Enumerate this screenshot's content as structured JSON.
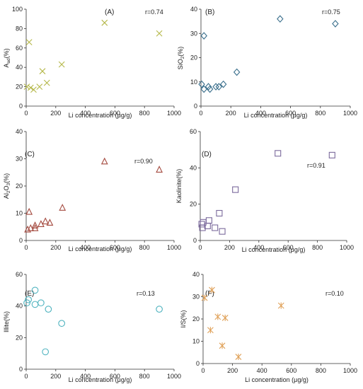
{
  "chart_data": [
    {
      "type": "scatter",
      "panel_label": "(A)",
      "r_label": "r=0.74",
      "ylabel_main": "A",
      "ylabel_sub": "ad",
      "ylabel_unit": "(%)",
      "xlabel": "Li concentration (μg/g)",
      "xlim": [
        0,
        1000
      ],
      "ylim": [
        0,
        100
      ],
      "xticks": [
        0,
        200,
        400,
        600,
        800,
        1000
      ],
      "yticks": [
        0,
        20,
        40,
        60,
        80,
        100
      ],
      "marker": "x",
      "color": "#b5b84a",
      "points": [
        [
          5,
          20
        ],
        [
          20,
          66
        ],
        [
          30,
          19
        ],
        [
          50,
          17
        ],
        [
          90,
          20
        ],
        [
          110,
          36
        ],
        [
          140,
          24
        ],
        [
          240,
          43
        ],
        [
          530,
          86
        ],
        [
          900,
          75
        ]
      ]
    },
    {
      "type": "scatter",
      "panel_label": "(B)",
      "r_label": "r=0.75",
      "ylabel_main": "SiO",
      "ylabel_sub": "2",
      "ylabel_unit": "(%)",
      "xlabel": "Li concentration (μg/g)",
      "xlim": [
        0,
        1000
      ],
      "ylim": [
        0,
        40
      ],
      "xticks": [
        0,
        200,
        400,
        600,
        800,
        1000
      ],
      "yticks": [
        0,
        10,
        20,
        30,
        40
      ],
      "marker": "diamond",
      "color": "#3a6f8c",
      "points": [
        [
          5,
          9
        ],
        [
          20,
          7
        ],
        [
          20,
          29
        ],
        [
          50,
          8
        ],
        [
          60,
          7
        ],
        [
          100,
          8
        ],
        [
          120,
          8
        ],
        [
          150,
          9
        ],
        [
          240,
          14
        ],
        [
          530,
          36
        ],
        [
          900,
          34
        ]
      ]
    },
    {
      "type": "scatter",
      "panel_label": "(C)",
      "r_label": "r=0.90",
      "ylabel_main": "Al",
      "ylabel_sub": "2",
      "ylabel_main2": "O",
      "ylabel_sub2": "3",
      "ylabel_unit": "(%)",
      "xlabel": "Li concentration (μg/g)",
      "xlim": [
        0,
        1000
      ],
      "ylim": [
        0,
        40
      ],
      "xticks": [
        0,
        200,
        400,
        600,
        800,
        1000
      ],
      "yticks": [
        0,
        10,
        20,
        30,
        40
      ],
      "marker": "triangle",
      "color": "#a44a3f",
      "points": [
        [
          10,
          4
        ],
        [
          20,
          10.5
        ],
        [
          30,
          4.5
        ],
        [
          60,
          5.5
        ],
        [
          60,
          4.5
        ],
        [
          100,
          6
        ],
        [
          130,
          7
        ],
        [
          160,
          6.5
        ],
        [
          245,
          12
        ],
        [
          530,
          29
        ],
        [
          900,
          26
        ]
      ]
    },
    {
      "type": "scatter",
      "panel_label": "(D)",
      "r_label": "r=0.91",
      "ylabel_main": "Kaolinite",
      "ylabel_unit": "(%)",
      "xlabel": "Li concentration (μg/g)",
      "xlim": [
        0,
        1000
      ],
      "ylim": [
        0,
        60
      ],
      "xticks": [
        0,
        200,
        400,
        600,
        800,
        1000
      ],
      "yticks": [
        0,
        20,
        40,
        60
      ],
      "marker": "square",
      "color": "#7b6a9c",
      "points": [
        [
          10,
          9
        ],
        [
          15,
          7
        ],
        [
          20,
          10
        ],
        [
          50,
          8
        ],
        [
          60,
          11
        ],
        [
          100,
          7
        ],
        [
          130,
          15
        ],
        [
          150,
          5
        ],
        [
          240,
          28
        ],
        [
          530,
          48
        ],
        [
          900,
          47
        ]
      ]
    },
    {
      "type": "scatter",
      "panel_label": "(E)",
      "r_label": "r=0.13",
      "ylabel_main": "Illite",
      "ylabel_unit": "(%)",
      "xlabel": "Li concentration (μg/g)",
      "xlim": [
        0,
        1000
      ],
      "ylim": [
        0,
        60
      ],
      "xticks": [
        0,
        200,
        400,
        600,
        800,
        1000
      ],
      "yticks": [
        0,
        20,
        40,
        60
      ],
      "marker": "circle",
      "color": "#4fb3bf",
      "points": [
        [
          5,
          42
        ],
        [
          15,
          44
        ],
        [
          60,
          50
        ],
        [
          60,
          41
        ],
        [
          100,
          42
        ],
        [
          130,
          11
        ],
        [
          150,
          38
        ],
        [
          240,
          29
        ],
        [
          900,
          38
        ]
      ]
    },
    {
      "type": "scatter",
      "panel_label": "(F)",
      "r_label": "r=0.10",
      "ylabel_main": "I/S",
      "ylabel_unit": "(%)",
      "xlabel": "Li concentration (μg/g)",
      "xlim": [
        0,
        1000
      ],
      "ylim": [
        0,
        40
      ],
      "xticks": [
        0,
        200,
        400,
        600,
        800,
        1000
      ],
      "yticks": [
        0,
        10,
        20,
        30,
        40
      ],
      "marker": "asterisk",
      "color": "#e0a25a",
      "points": [
        [
          10,
          29.5
        ],
        [
          50,
          15
        ],
        [
          60,
          33
        ],
        [
          100,
          21
        ],
        [
          130,
          8
        ],
        [
          150,
          20.5
        ],
        [
          240,
          3
        ],
        [
          530,
          26
        ]
      ]
    }
  ]
}
